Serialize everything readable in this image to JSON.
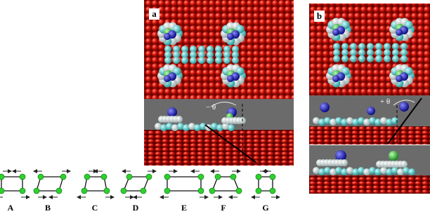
{
  "panels": [
    {
      "label": "a",
      "angle_label": "− θ"
    },
    {
      "label": "b",
      "angle_label": "+ θ"
    }
  ],
  "schemes": [
    "A",
    "B",
    "C",
    "D",
    "E",
    "F",
    "G"
  ]
}
